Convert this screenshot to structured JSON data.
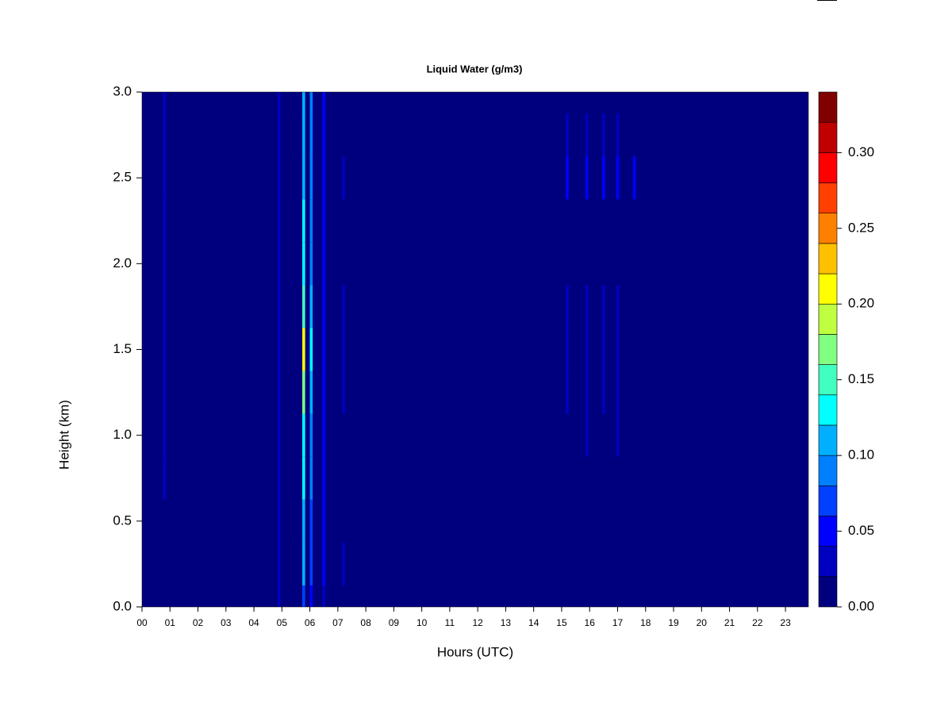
{
  "chart_data": {
    "type": "heatmap",
    "title": "Liquid Water (g/m3)",
    "x_label": "Hours (UTC)",
    "y_label": "Height (km)",
    "x": [
      0.8,
      4.9,
      5.78,
      6.05,
      6.5,
      7.2,
      15.2,
      15.9,
      16.5,
      17.0,
      17.6
    ],
    "y": [
      0,
      0.25,
      0.5,
      0.75,
      1.0,
      1.25,
      1.5,
      1.75,
      2.0,
      2.25,
      2.5,
      2.75,
      3.0
    ],
    "z": [
      [
        0,
        0,
        0,
        0.02,
        0.03,
        0.02,
        0.03,
        0.02,
        0.02,
        0.02,
        0.03,
        0.02,
        0.02
      ],
      [
        0.02,
        0.02,
        0.02,
        0.02,
        0.02,
        0.02,
        0.02,
        0.02,
        0.02,
        0.02,
        0.02,
        0.02,
        0.02
      ],
      [
        0.06,
        0.1,
        0.11,
        0.12,
        0.13,
        0.16,
        0.2,
        0.15,
        0.12,
        0.12,
        0.11,
        0.11,
        0.11
      ],
      [
        0.04,
        0.06,
        0.07,
        0.08,
        0.08,
        0.1,
        0.13,
        0.1,
        0.08,
        0.08,
        0.08,
        0.08,
        0.08
      ],
      [
        0.03,
        0.04,
        0.04,
        0.04,
        0.04,
        0.04,
        0.04,
        0.04,
        0.04,
        0.04,
        0.04,
        0.04,
        0.04
      ],
      [
        0,
        0.02,
        0,
        0,
        0,
        0.02,
        0.02,
        0.02,
        0,
        0,
        0.02,
        0,
        0
      ],
      [
        0,
        0,
        0,
        0,
        0,
        0.02,
        0.03,
        0.02,
        0,
        0,
        0.04,
        0.03,
        0
      ],
      [
        0,
        0,
        0,
        0,
        0.02,
        0.03,
        0.03,
        0.02,
        0,
        0,
        0.04,
        0.03,
        0
      ],
      [
        0,
        0,
        0,
        0,
        0,
        0.02,
        0.03,
        0.03,
        0,
        0,
        0.05,
        0.03,
        0
      ],
      [
        0,
        0,
        0,
        0,
        0.02,
        0.03,
        0.03,
        0.02,
        0,
        0,
        0.05,
        0.02,
        0
      ],
      [
        0,
        0,
        0,
        0,
        0,
        0,
        0,
        0,
        0,
        0,
        0.04,
        0,
        0
      ]
    ],
    "xlim": [
      0,
      23.82
    ],
    "ylim": [
      0,
      3.0
    ],
    "xticks": [
      {
        "value": 0,
        "label": "00"
      },
      {
        "value": 1,
        "label": "01"
      },
      {
        "value": 2,
        "label": "02"
      },
      {
        "value": 3,
        "label": "03"
      },
      {
        "value": 4,
        "label": "04"
      },
      {
        "value": 5,
        "label": "05"
      },
      {
        "value": 6,
        "label": "06"
      },
      {
        "value": 7,
        "label": "07"
      },
      {
        "value": 8,
        "label": "08"
      },
      {
        "value": 9,
        "label": "09"
      },
      {
        "value": 10,
        "label": "10"
      },
      {
        "value": 11,
        "label": "11"
      },
      {
        "value": 12,
        "label": "12"
      },
      {
        "value": 13,
        "label": "13"
      },
      {
        "value": 14,
        "label": "14"
      },
      {
        "value": 15,
        "label": "15"
      },
      {
        "value": 16,
        "label": "16"
      },
      {
        "value": 17,
        "label": "17"
      },
      {
        "value": 18,
        "label": "18"
      },
      {
        "value": 19,
        "label": "19"
      },
      {
        "value": 20,
        "label": "20"
      },
      {
        "value": 21,
        "label": "21"
      },
      {
        "value": 22,
        "label": "22"
      },
      {
        "value": 23,
        "label": "23"
      }
    ],
    "yticks": [
      {
        "value": 0,
        "label": "0.0"
      },
      {
        "value": 0.5,
        "label": "0.5"
      },
      {
        "value": 1,
        "label": "1.0"
      },
      {
        "value": 1.5,
        "label": "1.5"
      },
      {
        "value": 2,
        "label": "2.0"
      },
      {
        "value": 2.5,
        "label": "2.5"
      },
      {
        "value": 3,
        "label": "3.0"
      }
    ],
    "levels": [
      0,
      0.02,
      0.04,
      0.06,
      0.08,
      0.1,
      0.12,
      0.14,
      0.16,
      0.18,
      0.2,
      0.22,
      0.24,
      0.26,
      0.28,
      0.3,
      0.32,
      0.34
    ],
    "colors": [
      "#00007f",
      "#0000bf",
      "#0000ff",
      "#0040ff",
      "#0080ff",
      "#00b0ff",
      "#00ffff",
      "#40ffc0",
      "#80ff80",
      "#c0ff40",
      "#ffff00",
      "#ffc000",
      "#ff8000",
      "#ff4000",
      "#ff0000",
      "#c00000",
      "#800000"
    ],
    "colorbar_ticks": [
      {
        "value": 0,
        "label": "0.00"
      },
      {
        "value": 0.05,
        "label": "0.05"
      },
      {
        "value": 0.1,
        "label": "0.10"
      },
      {
        "value": 0.15,
        "label": "0.15"
      },
      {
        "value": 0.2,
        "label": "0.20"
      },
      {
        "value": 0.25,
        "label": "0.25"
      },
      {
        "value": 0.3,
        "label": "0.30"
      }
    ]
  }
}
